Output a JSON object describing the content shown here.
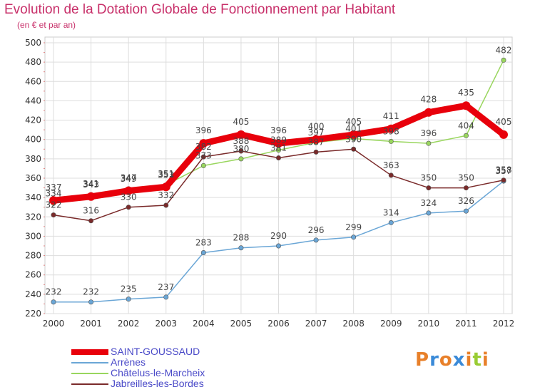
{
  "chart_data": {
    "type": "line",
    "title": "Evolution de la Dotation Globale de Fonctionnement par Habitant",
    "subtitle": "(en € et par an)",
    "xlabel": "",
    "ylabel": "",
    "ylim": [
      220,
      500
    ],
    "yticks": [
      220,
      240,
      260,
      280,
      300,
      320,
      340,
      360,
      380,
      400,
      420,
      440,
      460,
      480,
      500
    ],
    "categories": [
      "2000",
      "2001",
      "2002",
      "2003",
      "2004",
      "2005",
      "2006",
      "2007",
      "2008",
      "2009",
      "2010",
      "2011",
      "2012"
    ],
    "grid": true,
    "legend_position": "bottom-left",
    "series": [
      {
        "name": "SAINT-GOUSSAUD",
        "color": "#e8000b",
        "values": [
          337,
          341,
          347,
          351,
          396,
          405,
          396,
          400,
          405,
          411,
          428,
          435,
          405
        ]
      },
      {
        "name": "Arrènes",
        "color": "#6aa6d6",
        "values": [
          232,
          232,
          235,
          237,
          283,
          288,
          290,
          296,
          299,
          314,
          324,
          326,
          357
        ]
      },
      {
        "name": "Châtelus-le-Marcheix",
        "color": "#99d65e",
        "values": [
          334,
          343,
          349,
          353,
          373,
          380,
          389,
          397,
          401,
          398,
          396,
          404,
          482
        ]
      },
      {
        "name": "Jabreilles-les-Bordes",
        "color": "#7a2a2a",
        "values": [
          322,
          316,
          330,
          332,
          382,
          388,
          381,
          387,
          390,
          363,
          350,
          350,
          358
        ]
      }
    ]
  },
  "logo": {
    "text": "Proxiti",
    "colors": [
      "#e8802a",
      "#3a8ad8",
      "#e8802a",
      "#3a8ad8",
      "#e8802a",
      "#99cc33",
      "#e8802a"
    ]
  }
}
